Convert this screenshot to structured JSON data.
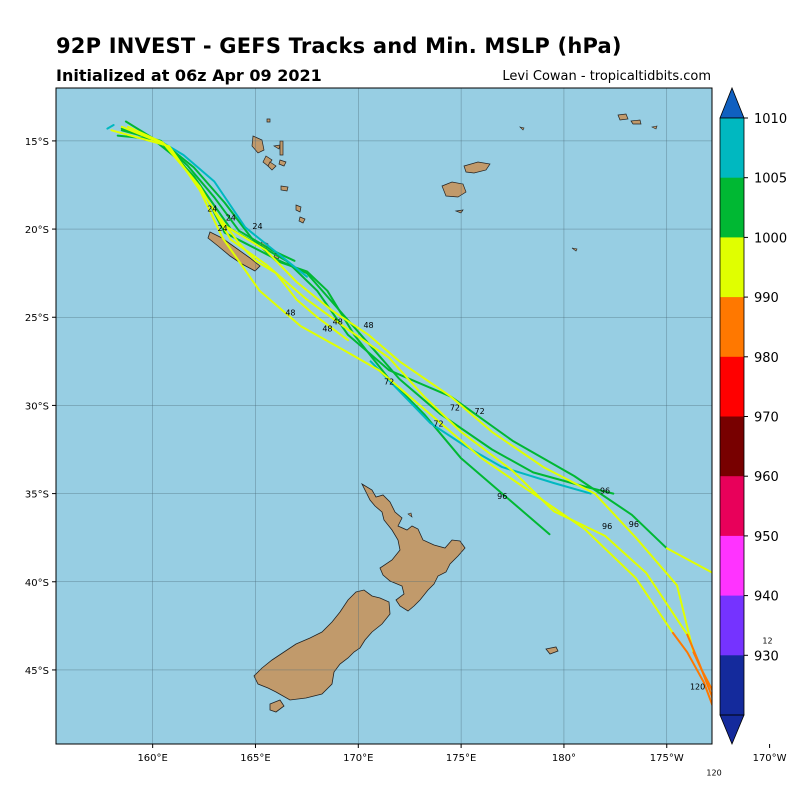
{
  "title": "92P INVEST - GEFS Tracks and Min. MSLP (hPa)",
  "subtitle": "Initialized at 06z Apr 09 2021",
  "credit": "Levi Cowan - tropicaltidbits.com",
  "colors": {
    "ocean": "#97cee3",
    "land": "#c19a6b",
    "grid": "#4a6a78"
  },
  "map": {
    "lon_range": [
      155.3,
      187.2
    ],
    "lat_range": [
      -49.2,
      -12.0
    ],
    "lon_ticks": [
      {
        "lon": 160,
        "label": "160°E"
      },
      {
        "lon": 165,
        "label": "165°E"
      },
      {
        "lon": 170,
        "label": "170°E"
      },
      {
        "lon": 175,
        "label": "175°E"
      },
      {
        "lon": 180,
        "label": "180°"
      },
      {
        "lon": 185,
        "label": "175°W"
      },
      {
        "lon": 190,
        "label": "170°W"
      }
    ],
    "lat_ticks": [
      {
        "lat": -15,
        "label": "15°S"
      },
      {
        "lat": -20,
        "label": "20°S"
      },
      {
        "lat": -25,
        "label": "25°S"
      },
      {
        "lat": -30,
        "label": "30°S"
      },
      {
        "lat": -35,
        "label": "35°S"
      },
      {
        "lat": -40,
        "label": "40°S"
      },
      {
        "lat": -45,
        "label": "45°S"
      }
    ]
  },
  "colorbar": {
    "levels": [
      {
        "value": "1010",
        "color": "#00b8c0"
      },
      {
        "value": "1005",
        "color": "#00b833"
      },
      {
        "value": "1000",
        "color": "#e0ff00"
      },
      {
        "value": "990",
        "color": "#ff7800"
      },
      {
        "value": "980",
        "color": "#ff0000"
      },
      {
        "value": "970",
        "color": "#780000"
      },
      {
        "value": "960",
        "color": "#e8005a"
      },
      {
        "value": "950",
        "color": "#ff33ff"
      },
      {
        "value": "940",
        "color": "#7533ff"
      },
      {
        "value": "930",
        "color": "#142a9c"
      }
    ],
    "top_arrow_color": "#1060c0",
    "bottom_arrow_color": "#142a9c"
  },
  "hour_labels": [
    {
      "text": "24",
      "lon": 162.9,
      "lat": -19.0
    },
    {
      "text": "24",
      "lon": 163.8,
      "lat": -19.5
    },
    {
      "text": "24",
      "lon": 163.4,
      "lat": -20.1
    },
    {
      "text": "24",
      "lon": 165.1,
      "lat": -20.0
    },
    {
      "text": "48",
      "lon": 166.7,
      "lat": -24.9
    },
    {
      "text": "48",
      "lon": 169.0,
      "lat": -25.4
    },
    {
      "text": "48",
      "lon": 168.5,
      "lat": -25.8
    },
    {
      "text": "48",
      "lon": 170.5,
      "lat": -25.6
    },
    {
      "text": "72",
      "lon": 171.5,
      "lat": -28.8
    },
    {
      "text": "72",
      "lon": 174.7,
      "lat": -30.3
    },
    {
      "text": "72",
      "lon": 175.9,
      "lat": -30.5
    },
    {
      "text": "72",
      "lon": 173.9,
      "lat": -31.2
    },
    {
      "text": "96",
      "lon": 177.0,
      "lat": -35.3
    },
    {
      "text": "96",
      "lon": 182.0,
      "lat": -35.0
    },
    {
      "text": "96",
      "lon": 182.1,
      "lat": -37.0
    },
    {
      "text": "96",
      "lon": 183.4,
      "lat": -36.9
    },
    {
      "text": "120",
      "lon": 186.5,
      "lat": -46.1
    },
    {
      "text": "12",
      "lon": 189.9,
      "lat": -43.5
    },
    {
      "text": "120",
      "lon": 187.3,
      "lat": -51.0
    }
  ],
  "tracks": [
    {
      "color": "#00b833",
      "points": [
        [
          158.7,
          -13.9
        ],
        [
          160.5,
          -15.2
        ],
        [
          162.0,
          -17.0
        ],
        [
          163.8,
          -20.0
        ],
        [
          166.5,
          -21.8
        ],
        [
          168.0,
          -23.5
        ],
        [
          169.5,
          -26.0
        ],
        [
          171.5,
          -28.0
        ],
        [
          174.5,
          -29.5
        ],
        [
          177.5,
          -32.0
        ],
        [
          180.5,
          -34.0
        ],
        [
          183.3,
          -36.2
        ],
        [
          185.0,
          -38.1
        ]
      ]
    },
    {
      "color": "#00b833",
      "points": [
        [
          158.3,
          -14.7
        ],
        [
          160.0,
          -14.9
        ],
        [
          161.3,
          -16.1
        ],
        [
          162.3,
          -17.5
        ],
        [
          163.5,
          -20.2
        ],
        [
          164.5,
          -20.8
        ],
        [
          166.0,
          -21.7
        ],
        [
          167.5,
          -22.5
        ],
        [
          169.0,
          -24.5
        ],
        [
          170.5,
          -26.5
        ],
        [
          172.0,
          -28.5
        ],
        [
          174.0,
          -30.5
        ],
        [
          176.5,
          -32.5
        ],
        [
          178.5,
          -33.8
        ],
        [
          181.0,
          -34.6
        ],
        [
          182.4,
          -35.0
        ]
      ]
    },
    {
      "color": "#00b833",
      "points": [
        [
          158.5,
          -14.3
        ],
        [
          160.5,
          -15.1
        ],
        [
          162.0,
          -16.5
        ],
        [
          163.5,
          -18.5
        ],
        [
          164.8,
          -20.5
        ],
        [
          166.0,
          -21.8
        ],
        [
          167.5,
          -22.4
        ],
        [
          168.5,
          -23.5
        ],
        [
          169.8,
          -26.0
        ],
        [
          171.5,
          -28.5
        ],
        [
          173.2,
          -30.5
        ],
        [
          175.0,
          -33.0
        ],
        [
          177.0,
          -35.0
        ],
        [
          179.3,
          -37.3
        ]
      ]
    },
    {
      "color": "#00b833",
      "points": [
        [
          158.5,
          -14.4
        ],
        [
          160.4,
          -15.0
        ],
        [
          161.7,
          -16.4
        ],
        [
          163.0,
          -18.2
        ],
        [
          164.2,
          -20.1
        ],
        [
          165.8,
          -21.2
        ],
        [
          166.9,
          -21.8
        ]
      ]
    },
    {
      "color": "#00b8c0",
      "points": [
        [
          157.8,
          -14.3
        ],
        [
          158.1,
          -14.1
        ]
      ]
    },
    {
      "color": "#00b8c0",
      "points": [
        [
          160.5,
          -15.1
        ],
        [
          161.5,
          -15.8
        ],
        [
          163.0,
          -17.3
        ],
        [
          164.5,
          -19.9
        ],
        [
          166.0,
          -21.3
        ],
        [
          167.5,
          -22.7
        ]
      ]
    },
    {
      "color": "#00b8c0",
      "points": [
        [
          170.6,
          -27.5
        ],
        [
          173.5,
          -31.0
        ],
        [
          175.2,
          -32.3
        ],
        [
          177.0,
          -33.5
        ],
        [
          179.5,
          -34.4
        ],
        [
          181.3,
          -35.0
        ]
      ]
    },
    {
      "color": "#e0ff00",
      "points": [
        [
          158.0,
          -14.4
        ],
        [
          160.8,
          -15.3
        ],
        [
          162.3,
          -17.8
        ],
        [
          163.4,
          -20.5
        ],
        [
          165.2,
          -23.5
        ],
        [
          167.2,
          -25.5
        ],
        [
          169.2,
          -26.8
        ],
        [
          171.0,
          -28.0
        ],
        [
          173.5,
          -30.5
        ],
        [
          176.0,
          -33.0
        ],
        [
          178.5,
          -35.0
        ],
        [
          181.0,
          -37.0
        ],
        [
          183.5,
          -39.8
        ],
        [
          185.3,
          -42.9
        ]
      ]
    },
    {
      "color": "#e0ff00",
      "points": [
        [
          158.5,
          -14.2
        ],
        [
          160.6,
          -15.2
        ],
        [
          162.3,
          -17.6
        ],
        [
          163.8,
          -20.6
        ],
        [
          165.5,
          -22.0
        ],
        [
          167.5,
          -24.0
        ],
        [
          169.5,
          -25.7
        ],
        [
          171.5,
          -27.3
        ],
        [
          173.2,
          -29.5
        ],
        [
          175.0,
          -31.5
        ],
        [
          177.5,
          -33.7
        ],
        [
          179.5,
          -36.0
        ],
        [
          182.0,
          -37.4
        ],
        [
          184.0,
          -39.5
        ],
        [
          186.0,
          -43.0
        ]
      ]
    },
    {
      "color": "#e0ff00",
      "points": [
        [
          158.8,
          -14.2
        ],
        [
          160.5,
          -15.1
        ],
        [
          162.0,
          -17.2
        ],
        [
          163.5,
          -19.8
        ],
        [
          165.5,
          -21.2
        ],
        [
          167.0,
          -23.0
        ],
        [
          168.7,
          -24.6
        ],
        [
          170.5,
          -26.0
        ],
        [
          172.0,
          -27.5
        ],
        [
          174.5,
          -29.5
        ],
        [
          176.5,
          -31.5
        ],
        [
          179.0,
          -33.5
        ],
        [
          181.5,
          -35.0
        ],
        [
          183.5,
          -37.5
        ],
        [
          185.5,
          -40.2
        ],
        [
          186.3,
          -44.0
        ]
      ]
    },
    {
      "color": "#e0ff00",
      "points": [
        [
          185.0,
          -38.1
        ],
        [
          187.4,
          -39.6
        ],
        [
          190.0,
          -42.0
        ],
        [
          192.5,
          -43.5
        ]
      ]
    },
    {
      "color": "#e0ff00",
      "points": [
        [
          163.3,
          -19.4
        ],
        [
          164.2,
          -20.8
        ],
        [
          165.0,
          -21.8
        ],
        [
          166.0,
          -22.5
        ],
        [
          167.0,
          -24.0
        ],
        [
          168.0,
          -25.0
        ],
        [
          169.5,
          -26.3
        ]
      ]
    },
    {
      "color": "#ff7800",
      "points": [
        [
          185.3,
          -42.9
        ],
        [
          186.0,
          -44.0
        ],
        [
          186.8,
          -45.7
        ],
        [
          187.7,
          -48.5
        ]
      ]
    },
    {
      "color": "#ff7800",
      "points": [
        [
          186.0,
          -43.0
        ],
        [
          186.6,
          -44.7
        ],
        [
          187.2,
          -46.5
        ],
        [
          187.4,
          -48.0
        ]
      ]
    },
    {
      "color": "#ff7800",
      "points": [
        [
          186.3,
          -44.0
        ],
        [
          186.7,
          -45.0
        ],
        [
          187.6,
          -47.0
        ],
        [
          187.9,
          -49.2
        ]
      ]
    },
    {
      "color": "#ff0000",
      "points": [
        [
          187.9,
          -47.0
        ],
        [
          187.9,
          -49.2
        ]
      ]
    }
  ]
}
